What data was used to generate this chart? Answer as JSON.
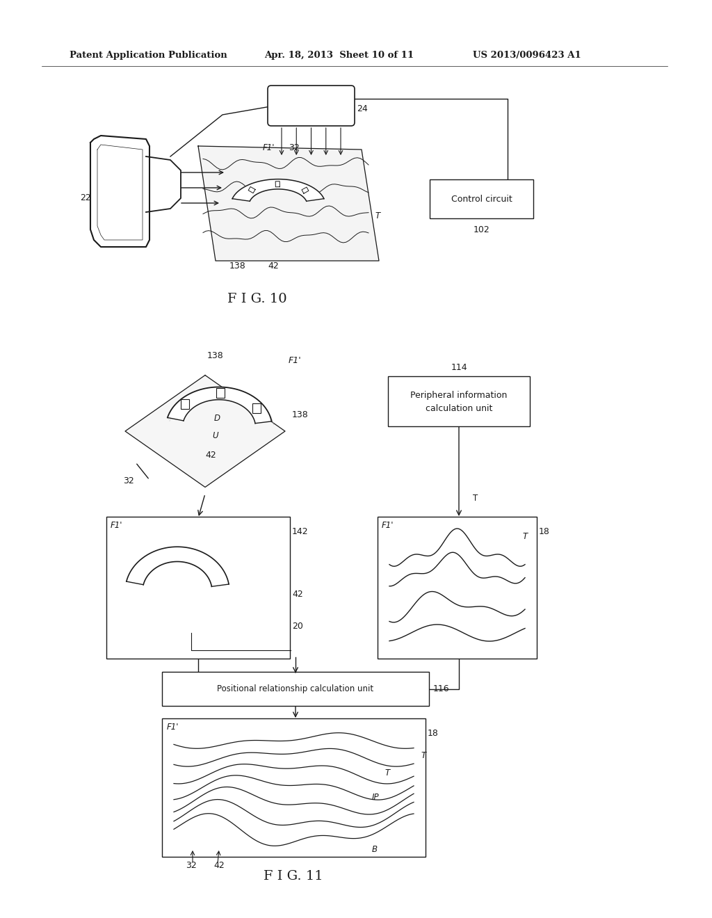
{
  "bg_color": "#ffffff",
  "black": "#1a1a1a",
  "lw": 1.0,
  "header1": "Patent Application Publication",
  "header2": "Apr. 18, 2013  Sheet 10 of 11",
  "header3": "US 2013/0096423 A1",
  "fig10_caption": "F I G. 10",
  "fig11_caption": "F I G. 11",
  "control_circuit": "Control circuit",
  "label_102": "102",
  "label_22": "22",
  "label_24": "24",
  "label_32_10": "32",
  "label_F1p_10": "F1'",
  "label_T_10": "T",
  "label_138_10": "138",
  "label_42_10": "42",
  "label_138_11a": "138",
  "label_F1p_11": "F1'",
  "label_138_11b": "138",
  "label_D": "D",
  "label_U": "U",
  "label_42_11": "42",
  "label_32_11": "32",
  "label_114": "114",
  "peri_line1": "Peripheral information",
  "peri_line2": "calculation unit",
  "label_142": "142",
  "label_42_box": "42",
  "label_20": "20",
  "label_32_box": "32",
  "label_F1p_leftbox": "F1'",
  "label_F1p_rightbox": "F1'",
  "label_T_rightbox": "T",
  "label_18": "18",
  "pos_rel": "Positional relationship calculation unit",
  "label_116": "116",
  "label_18b": "18",
  "label_F1p_bot": "F1'",
  "label_T_bot": "T",
  "label_IP": "IP",
  "label_32_bot": "32",
  "label_42_bot": "42",
  "label_B": "B"
}
